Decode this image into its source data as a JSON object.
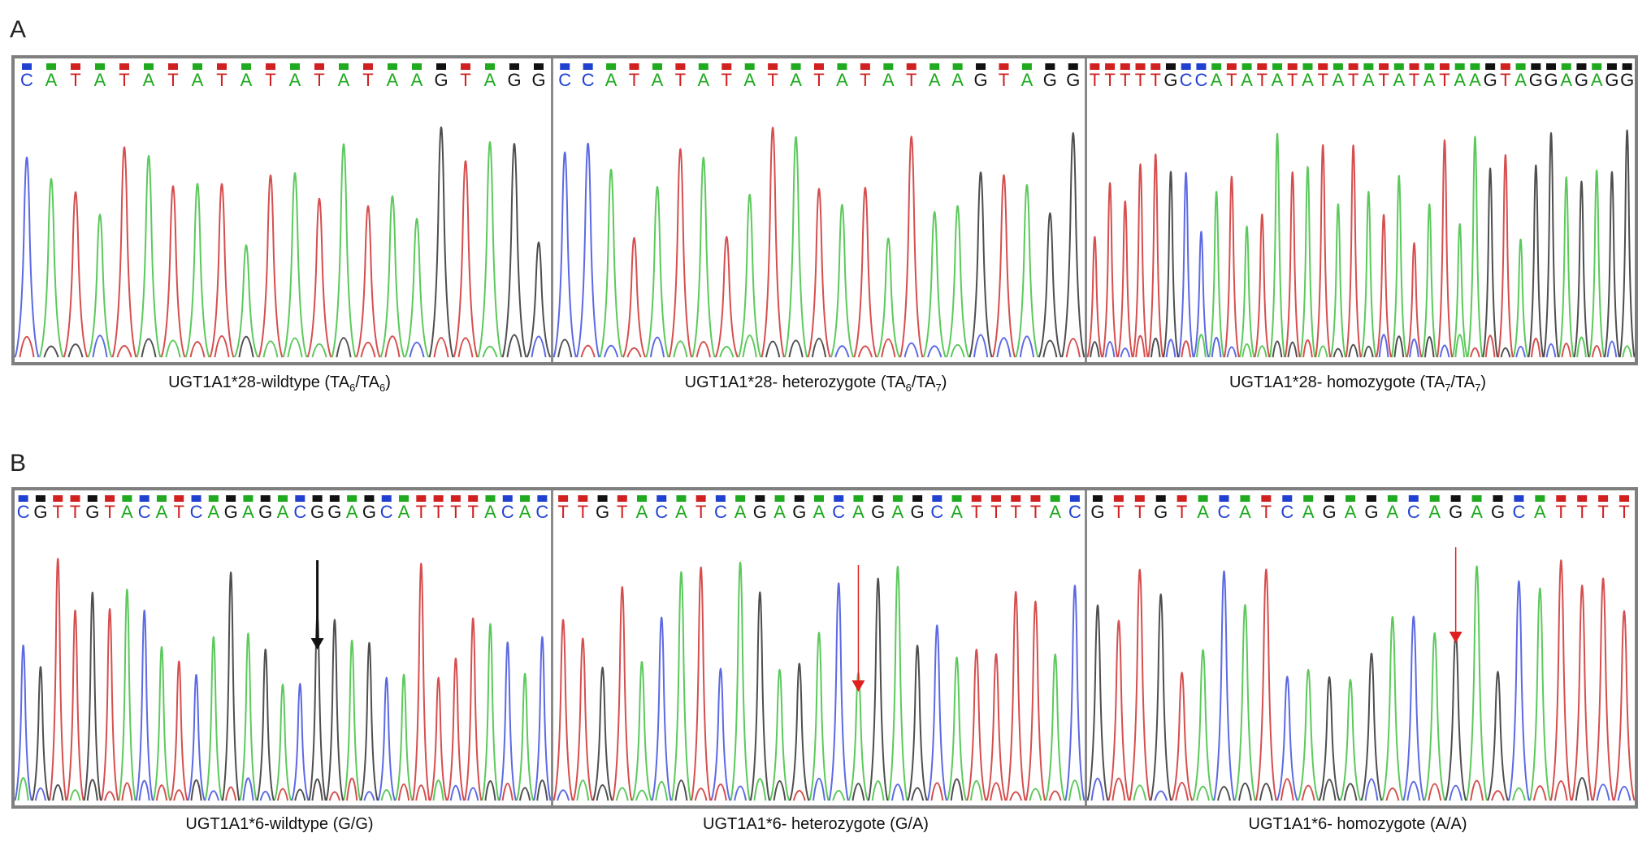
{
  "panel_a": {
    "letter": "A",
    "chromatograms": [
      {
        "sequence": "CATATATATATATATAAGTAGG",
        "caption_prefix": "UGT1A1*28-wildtype (TA",
        "sub1": "6",
        "caption_mid": "/TA",
        "sub2": "6",
        "caption_suffix": ")"
      },
      {
        "sequence": "CCATATATATATATATAAGTAGG",
        "caption_prefix": "UGT1A1*28- heterozygote (TA",
        "sub1": "6",
        "caption_mid": "/TA",
        "sub2": "7",
        "caption_suffix": ")"
      },
      {
        "sequence": "TTTTTGCCATATATATATATATATAAGTAGGAGAGG",
        "caption_prefix": "UGT1A1*28- homozygote (TA",
        "sub1": "7",
        "caption_mid": "/TA",
        "sub2": "7",
        "caption_suffix": ")"
      }
    ]
  },
  "panel_b": {
    "letter": "B",
    "chromatograms": [
      {
        "sequence": "CGTTGTACATCAGAGACGGAGCATTTTACAC",
        "caption": "UGT1A1*6-wildtype (G/G)",
        "arrow_color": "#111111"
      },
      {
        "sequence": "TTGTACATCAGAGACAGAGCATTTTAC",
        "caption": "UGT1A1*6- heterozygote (G/A)",
        "arrow_color": "#e02020"
      },
      {
        "sequence": "GTTGTACATCAGAGACAGAGCATTTT",
        "caption": "UGT1A1*6- homozygote (A/A)",
        "arrow_color": "#e02020"
      }
    ]
  },
  "base_colors": {
    "A": "#1faa1f",
    "C": "#2040d0",
    "G": "#111111",
    "T": "#d02020"
  },
  "trace_colors": {
    "A": "#33bb33",
    "C": "#3344dd",
    "G": "#222222",
    "T": "#cc2222"
  }
}
